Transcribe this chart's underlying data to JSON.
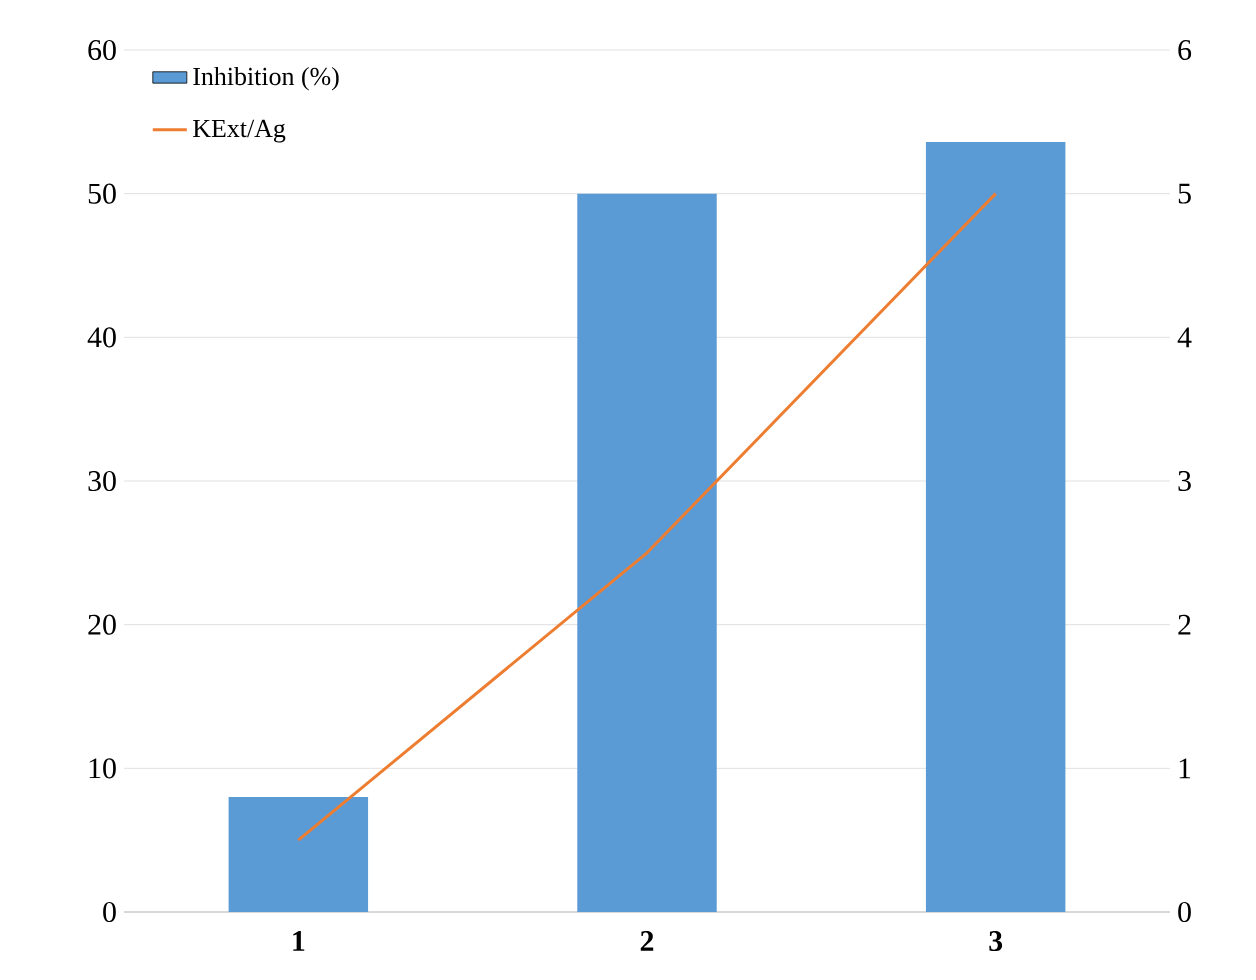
{
  "chart_data": {
    "type": "bar",
    "categories": [
      "1",
      "2",
      "3"
    ],
    "series": [
      {
        "name": "Inhibition (%)",
        "color": "#5b9bd5",
        "values": [
          8,
          50,
          53.6
        ]
      },
      {
        "name": "KExt/Ag",
        "type": "line",
        "axis": "y2",
        "color": "#ed7d31",
        "values": [
          0.5,
          2.5,
          5.0
        ]
      }
    ],
    "ylim": [
      0,
      60
    ],
    "yticks": [
      0,
      10,
      20,
      30,
      40,
      50,
      60
    ],
    "y2lim": [
      0,
      6
    ],
    "y2ticks": [
      0,
      1,
      2,
      3,
      4,
      5,
      6
    ],
    "grid": "y",
    "legend": "top left",
    "marker": "none",
    "line_style": "solid"
  }
}
